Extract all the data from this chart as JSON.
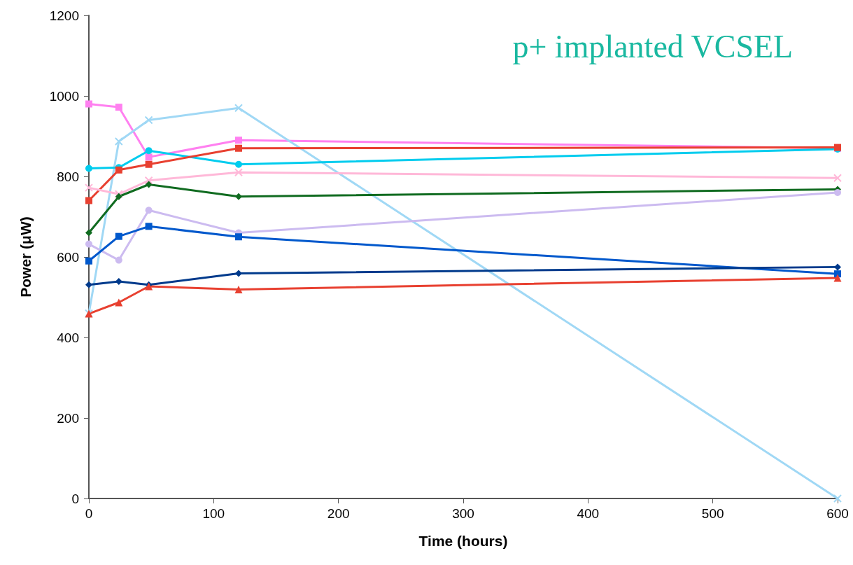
{
  "chart_data": {
    "type": "line",
    "title": "p+ implanted VCSEL",
    "xlabel": "Time (hours)",
    "ylabel": "Power (μW)",
    "x": [
      0,
      24,
      48,
      120,
      600
    ],
    "xlim": [
      0,
      600
    ],
    "xticks": [
      0,
      100,
      200,
      300,
      400,
      500,
      600
    ],
    "ylim": [
      0,
      1200
    ],
    "yticks": [
      0,
      200,
      400,
      600,
      800,
      1000,
      1200
    ],
    "grid": false,
    "series": [
      {
        "color": "#ff80f0",
        "marker": "square",
        "values": [
          980,
          972,
          848,
          890,
          870
        ]
      },
      {
        "color": "#a0d8f5",
        "marker": "cross",
        "values": [
          460,
          887,
          940,
          970,
          0
        ]
      },
      {
        "color": "#00ccee",
        "marker": "circle",
        "values": [
          820,
          822,
          864,
          830,
          868
        ]
      },
      {
        "color": "#e84030",
        "marker": "square",
        "values": [
          740,
          816,
          830,
          870,
          872
        ]
      },
      {
        "color": "#ffb8d8",
        "marker": "cross",
        "values": [
          772,
          756,
          790,
          810,
          796
        ]
      },
      {
        "color": "#106b20",
        "marker": "diamond",
        "values": [
          660,
          750,
          780,
          750,
          768
        ]
      },
      {
        "color": "#ccbbf0",
        "marker": "circle",
        "values": [
          632,
          592,
          716,
          660,
          760
        ]
      },
      {
        "color": "#0058cc",
        "marker": "square",
        "values": [
          590,
          651,
          676,
          650,
          558
        ]
      },
      {
        "color": "#003a8c",
        "marker": "diamond",
        "values": [
          531,
          539,
          531,
          559,
          575
        ]
      },
      {
        "color": "#e84030",
        "marker": "triangle",
        "values": [
          459,
          487,
          527,
          519,
          548
        ]
      }
    ]
  }
}
